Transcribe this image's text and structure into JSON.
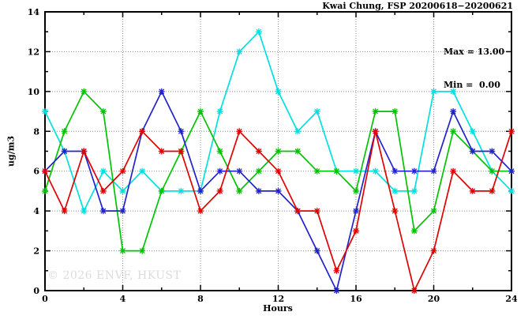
{
  "title": "Kwai Chung, FSP 20200618−20200621",
  "annotation": {
    "max_label": "Max = 13.00",
    "min_label": "Min =  0.00"
  },
  "watermark": "© 2026 ENVF, HKUST",
  "axes": {
    "y_label": "ug/m3",
    "x_label": "Hours"
  },
  "colors": {
    "axis": "#000000",
    "grid": "#8a8a8a",
    "background": "#ffffff",
    "watermark": "#dcdcdc"
  },
  "chart_data": {
    "type": "line",
    "title": "Kwai Chung, FSP 20200618−20200621",
    "xlabel": "Hours",
    "ylabel": "ug/m3",
    "xlim": [
      0,
      24
    ],
    "ylim": [
      0,
      14
    ],
    "x_major_ticks": [
      0,
      4,
      8,
      12,
      16,
      20,
      24
    ],
    "x_minor_step": 2,
    "y_major_ticks": [
      0,
      2,
      4,
      6,
      8,
      10,
      12,
      14
    ],
    "y_minor_step": 1,
    "grid": true,
    "legend_position": "none",
    "marker": "star",
    "stats": {
      "max": 13.0,
      "min": 0.0
    },
    "x": [
      0,
      1,
      2,
      3,
      4,
      5,
      6,
      7,
      8,
      9,
      10,
      11,
      12,
      13,
      14,
      15,
      16,
      17,
      18,
      19,
      20,
      21,
      22,
      23,
      24
    ],
    "series": [
      {
        "name": "cyan",
        "color": "#00e0e0",
        "values": [
          9,
          7,
          4,
          6,
          5,
          6,
          5,
          5,
          5,
          9,
          12,
          13,
          10,
          8,
          9,
          6,
          6,
          6,
          5,
          5,
          10,
          10,
          8,
          6,
          5
        ]
      },
      {
        "name": "green",
        "color": "#00c400",
        "values": [
          5,
          8,
          10,
          9,
          2,
          2,
          5,
          7,
          9,
          7,
          5,
          6,
          7,
          7,
          6,
          6,
          5,
          9,
          9,
          3,
          4,
          8,
          7,
          6,
          6
        ]
      },
      {
        "name": "blue",
        "color": "#2222cc",
        "values": [
          6,
          7,
          7,
          4,
          4,
          8,
          10,
          8,
          5,
          6,
          6,
          5,
          5,
          4,
          2,
          0,
          4,
          8,
          6,
          6,
          6,
          9,
          7,
          7,
          6
        ]
      },
      {
        "name": "red",
        "color": "#e00000",
        "values": [
          6,
          4,
          7,
          5,
          6,
          8,
          7,
          7,
          4,
          5,
          8,
          7,
          6,
          4,
          4,
          1,
          3,
          8,
          4,
          0,
          2,
          6,
          5,
          5,
          8
        ]
      }
    ]
  }
}
